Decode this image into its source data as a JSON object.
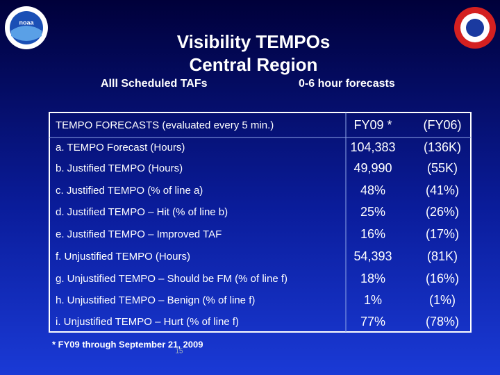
{
  "logo": {
    "label": "noaa"
  },
  "header": {
    "title_line1": "Visibility TEMPOs",
    "title_line2": "Central Region",
    "subtitle_left": "Alll Scheduled TAFs",
    "subtitle_right": "0-6 hour forecasts"
  },
  "table": {
    "header": [
      "TEMPO FORECASTS (evaluated every 5 min.)",
      "FY09 *",
      "(FY06)"
    ],
    "rows": [
      [
        "a.  TEMPO Forecast (Hours)",
        "104,383",
        "(136K)"
      ],
      [
        "b.  Justified TEMPO (Hours)",
        "49,990",
        "(55K)"
      ],
      [
        "c.  Justified TEMPO (% of line a)",
        "48%",
        "(41%)"
      ],
      [
        "d.  Justified TEMPO – Hit (% of line b)",
        "25%",
        "(26%)"
      ],
      [
        "e.  Justified TEMPO – Improved TAF",
        "16%",
        "(17%)"
      ],
      [
        "f.  Unjustified TEMPO   (Hours)",
        "54,393",
        "(81K)"
      ],
      [
        "g.  Unjustified TEMPO – Should be FM (% of line f)",
        "18%",
        "(16%)"
      ],
      [
        "h.  Unjustified TEMPO – Benign  (% of line f)",
        "1%",
        "(1%)"
      ],
      [
        "i.  Unjustified TEMPO – Hurt  (% of  line f)",
        "77%",
        "(78%)"
      ]
    ]
  },
  "footnote": "*  FY09 through September 21, 2009",
  "page_number": "15"
}
